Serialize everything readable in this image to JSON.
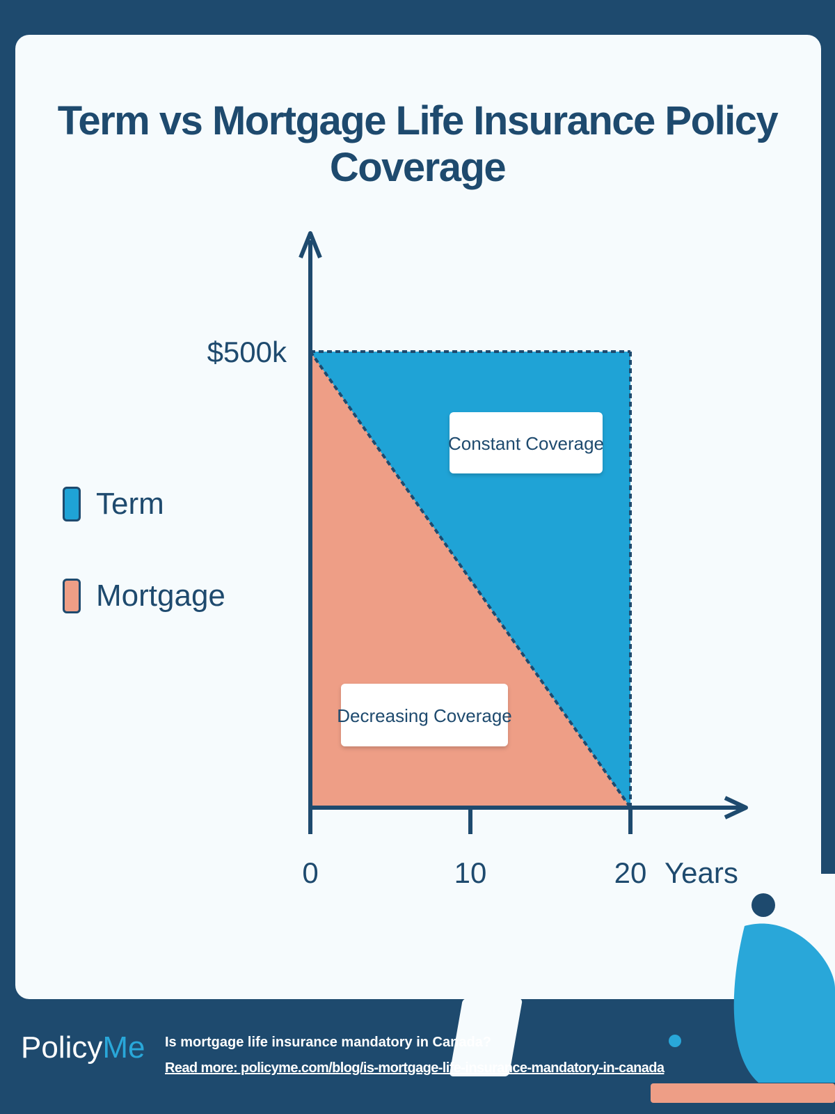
{
  "chart_data": {
    "type": "area",
    "title": "Term vs Mortgage Life Insurance Policy Coverage",
    "xlabel": "Years",
    "ylabel": "",
    "x_ticks": [
      "0",
      "10",
      "20"
    ],
    "y_ticks": [
      "$500k"
    ],
    "xlim": [
      0,
      20
    ],
    "ylim": [
      0,
      500000
    ],
    "series": [
      {
        "name": "Term",
        "x": [
          0,
          20
        ],
        "y": [
          500000,
          500000
        ],
        "color": "#1fa3d6"
      },
      {
        "name": "Mortgage",
        "x": [
          0,
          20
        ],
        "y": [
          500000,
          0
        ],
        "color": "#ee9e86"
      }
    ],
    "annotations": [
      "Constant Coverage",
      "Decreasing Coverage"
    ],
    "legend": {
      "placement": "left"
    },
    "grid": false
  },
  "footer": {
    "brand_policy": "Policy",
    "brand_me": "Me",
    "question": "Is mortgage life insurance mandatory in Canada?",
    "link": "Read more: policyme.com/blog/is-mortgage-life-insurance-mandatory-in-canada"
  },
  "colors": {
    "navy": "#1e4a6e",
    "term_blue": "#1fa3d6",
    "mortgage_salmon": "#ee9e86",
    "card": "#f6fbfd"
  }
}
